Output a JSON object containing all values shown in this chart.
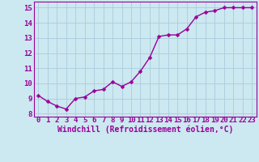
{
  "x": [
    0,
    1,
    2,
    3,
    4,
    5,
    6,
    7,
    8,
    9,
    10,
    11,
    12,
    13,
    14,
    15,
    16,
    17,
    18,
    19,
    20,
    21,
    22,
    23
  ],
  "y": [
    9.2,
    8.8,
    8.5,
    8.3,
    9.0,
    9.1,
    9.5,
    9.6,
    10.1,
    9.8,
    10.1,
    10.8,
    11.7,
    13.1,
    13.2,
    13.2,
    13.6,
    14.4,
    14.7,
    14.8,
    15.0,
    15.0,
    15.0,
    15.0
  ],
  "line_color": "#990099",
  "marker_color": "#990099",
  "bg_color": "#cce8f0",
  "grid_color": "#aaccdd",
  "xlabel": "Windchill (Refroidissement éolien,°C)",
  "ylabel_ticks": [
    8,
    9,
    10,
    11,
    12,
    13,
    14,
    15
  ],
  "xlim": [
    -0.5,
    23.5
  ],
  "ylim": [
    7.8,
    15.4
  ],
  "xticks": [
    0,
    1,
    2,
    3,
    4,
    5,
    6,
    7,
    8,
    9,
    10,
    11,
    12,
    13,
    14,
    15,
    16,
    17,
    18,
    19,
    20,
    21,
    22,
    23
  ],
  "tick_fontsize": 6.5,
  "xlabel_fontsize": 7,
  "line_width": 1.0,
  "marker_size": 2.5
}
